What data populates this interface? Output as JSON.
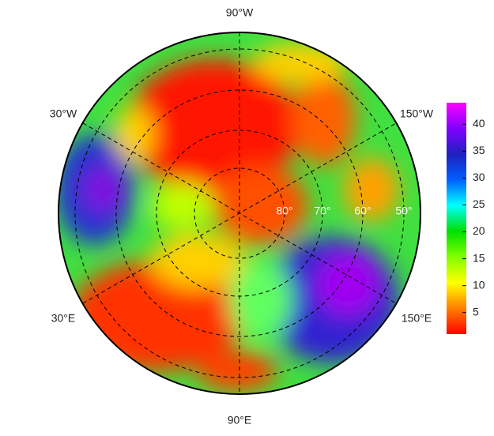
{
  "map": {
    "longitude_labels": [
      "90°W",
      "30°W",
      "150°W",
      "30°E",
      "150°E",
      "90°E"
    ],
    "latitude_labels": [
      "80°",
      "70°",
      "60°",
      "50°"
    ],
    "colorbar": {
      "lim": [
        1,
        44
      ],
      "ticks": [
        5,
        10,
        15,
        20,
        25,
        30,
        35,
        40
      ],
      "colors": [
        "#ff0000",
        "#ff8000",
        "#ffff00",
        "#80ff00",
        "#00e000",
        "#00ffff",
        "#0060ff",
        "#2020c0",
        "#8000ff",
        "#ff00ff"
      ]
    }
  }
}
